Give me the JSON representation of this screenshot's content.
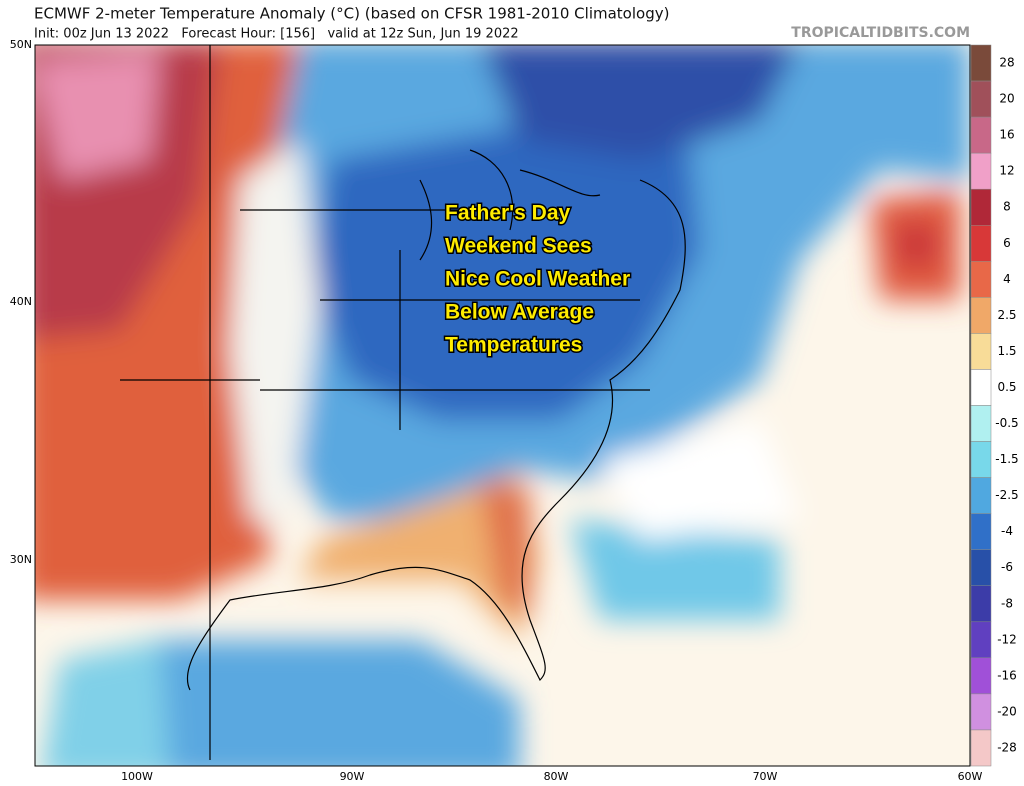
{
  "header": {
    "title": "ECMWF 2-meter Temperature Anomaly (°C) (based on CFSR 1981-2010 Climatology)",
    "subtitle": "Init: 00z Jun 13 2022   Forecast Hour: [156]   valid at 12z Sun, Jun 19 2022",
    "watermark": "TROPICALTIDBITS.COM"
  },
  "annotation": [
    "Father's Day",
    "Weekend Sees",
    "Nice Cool Weather",
    "Below Average",
    "Temperatures"
  ],
  "latitude_labels": [
    "50N",
    "40N",
    "30N"
  ],
  "longitude_labels": [
    "100W",
    "90W",
    "80W",
    "70W",
    "60W"
  ],
  "colorbar": {
    "labels": [
      "28",
      "20",
      "16",
      "12",
      "8",
      "6",
      "4",
      "2.5",
      "1.5",
      "0.5",
      "-0.5",
      "-1.5",
      "-2.5",
      "-4",
      "-6",
      "-8",
      "-12",
      "-16",
      "-20",
      "-28"
    ],
    "colors": [
      "#7a4a3a",
      "#a0505a",
      "#c86888",
      "#f0a0c8",
      "#b02838",
      "#d83838",
      "#e86848",
      "#f0a868",
      "#f8dc98",
      "#ffffff",
      "#b0f0f0",
      "#78d8ea",
      "#50a8e0",
      "#3070c8",
      "#2850a8",
      "#3c3ca8",
      "#6040c0",
      "#a050d8",
      "#d090e0",
      "#f4c8c8"
    ]
  }
}
